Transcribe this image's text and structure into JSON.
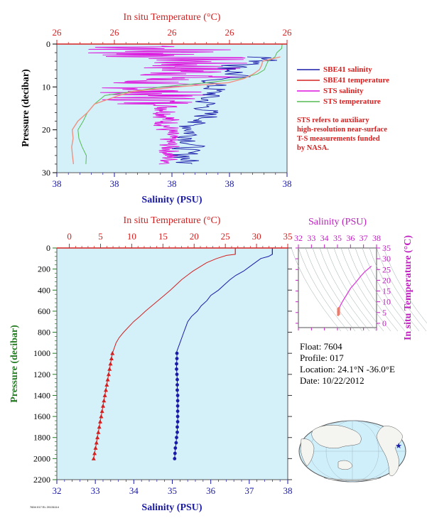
{
  "info": {
    "float_label": "Float:",
    "float": "7604",
    "profile_label": "Profile:",
    "profile": "017",
    "location_label": "Location:",
    "location": "24.1°N  -36.0°E",
    "date_label": "Date:",
    "date": "10/22/2012"
  },
  "note_lines": [
    "STS refers to auxiliary",
    "high-resolution near-surface",
    "T-S measurements funded",
    "by NASA."
  ],
  "footer": "7604 017 EL 20131114",
  "colors": {
    "salinity": "#1a1aa8",
    "temperature": "#d42020",
    "sts_salinity": "#dd11dd",
    "sts_temperature": "#55bb55",
    "background": "#d4f1f9",
    "ts_curve": "#dd33dd"
  },
  "chart_data": [
    {
      "type": "line",
      "name": "near-surface",
      "title": "",
      "top_axis_label": "In situ Temperature (°C)",
      "top_ticks": [
        "26",
        "26",
        "26",
        "26",
        "26"
      ],
      "xlabel": "Salinity (PSU)",
      "x_ticks": [
        "38",
        "38",
        "38",
        "38",
        "38"
      ],
      "ylabel": "Pressure (decibar)",
      "y_ticks": [
        0,
        10,
        20,
        30
      ],
      "ylim": [
        0,
        30
      ],
      "legend_placement": "right",
      "series": [
        {
          "name": "SBE41 salinity",
          "pressure": [
            3,
            4,
            5,
            6,
            7,
            8,
            9,
            10,
            11,
            12,
            13,
            14,
            15,
            16,
            17,
            18,
            19,
            20,
            21,
            22,
            23,
            24,
            25,
            26,
            27,
            28
          ]
        },
        {
          "name": "SBE41 temperature",
          "pressure": [
            3,
            4,
            5,
            6,
            7,
            8,
            9,
            10,
            11,
            12,
            14,
            16,
            18,
            20,
            22,
            24,
            26,
            28
          ]
        },
        {
          "name": "STS salinity",
          "pressure": [
            1,
            2,
            3,
            5,
            6,
            8,
            10,
            11,
            12,
            13,
            14,
            15,
            19,
            22,
            24,
            25,
            27,
            28
          ]
        },
        {
          "name": "STS temperature",
          "pressure": [
            0,
            1,
            2,
            3,
            5,
            7,
            8,
            10,
            12,
            14,
            16,
            18,
            20,
            22,
            24,
            26,
            28
          ]
        }
      ]
    },
    {
      "type": "line",
      "name": "full-profile",
      "title": "",
      "top_axis_label": "In situ Temperature (°C)",
      "top_ticks": [
        0,
        5,
        10,
        15,
        20,
        25,
        30,
        35
      ],
      "temperature_range": [
        -2,
        35
      ],
      "xlabel": "Salinity (PSU)",
      "x_ticks": [
        32,
        33,
        34,
        35,
        36,
        37,
        38
      ],
      "salinity_range": [
        32,
        38
      ],
      "ylabel": "Pressure (decibar)",
      "y_ticks": [
        0,
        200,
        400,
        600,
        800,
        1000,
        1200,
        1400,
        1600,
        1800,
        2000,
        2200
      ],
      "ylim": [
        0,
        2200
      ],
      "series": [
        {
          "name": "Salinity",
          "pressure": [
            5,
            60,
            80,
            100,
            140,
            180,
            220,
            260,
            300,
            350,
            400,
            450,
            500,
            550,
            600,
            650,
            700,
            750,
            800,
            850,
            900,
            950,
            1000
          ],
          "values": [
            37.6,
            37.6,
            37.5,
            37.3,
            37.15,
            37.0,
            36.85,
            36.65,
            36.5,
            36.35,
            36.2,
            36.0,
            35.9,
            35.75,
            35.65,
            35.5,
            35.4,
            35.35,
            35.3,
            35.25,
            35.2,
            35.15,
            35.1
          ],
          "samples": {
            "pressure": [
              1000,
              1050,
              1100,
              1150,
              1200,
              1250,
              1300,
              1350,
              1400,
              1450,
              1500,
              1550,
              1600,
              1650,
              1700,
              1750,
              1800,
              1850,
              1900,
              1950,
              2000
            ],
            "values": [
              35.12,
              35.12,
              35.11,
              35.11,
              35.12,
              35.13,
              35.13,
              35.13,
              35.14,
              35.14,
              35.14,
              35.14,
              35.14,
              35.14,
              35.13,
              35.13,
              35.11,
              35.1,
              35.08,
              35.07,
              35.06
            ]
          }
        },
        {
          "name": "In situ Temperature",
          "pressure": [
            5,
            60,
            70,
            100,
            140,
            180,
            220,
            260,
            300,
            350,
            400,
            450,
            500,
            550,
            600,
            650,
            700,
            750,
            800,
            850,
            900,
            950,
            1000
          ],
          "values": [
            26.6,
            26.6,
            25.2,
            23.6,
            22.0,
            20.9,
            19.8,
            18.9,
            18.0,
            17.1,
            16.2,
            15.2,
            14.2,
            13.2,
            12.2,
            11.3,
            10.3,
            9.5,
            8.7,
            8.0,
            7.5,
            7.2,
            6.9
          ],
          "samples": {
            "pressure": [
              1000,
              1050,
              1100,
              1150,
              1200,
              1250,
              1300,
              1350,
              1400,
              1450,
              1500,
              1550,
              1600,
              1650,
              1700,
              1750,
              1800,
              1850,
              1900,
              1950,
              2000
            ],
            "values": [
              6.9,
              6.75,
              6.6,
              6.45,
              6.3,
              6.15,
              6.0,
              5.85,
              5.7,
              5.55,
              5.4,
              5.25,
              5.1,
              4.95,
              4.8,
              4.65,
              4.5,
              4.35,
              4.2,
              4.05,
              3.9
            ]
          }
        }
      ]
    },
    {
      "type": "line",
      "name": "ts-diagram",
      "title": "",
      "top_axis_label": "Salinity (PSU)",
      "x_ticks": [
        32,
        33,
        34,
        35,
        36,
        37,
        38
      ],
      "xlim": [
        32,
        38
      ],
      "right_axis_label": "In situ Temperature (°C)",
      "y_ticks": [
        0,
        5,
        10,
        15,
        20,
        25,
        30,
        35
      ],
      "ylim": [
        -2,
        35
      ],
      "series": [
        {
          "name": "T-S",
          "x": [
            35.05,
            35.1,
            35.2,
            35.4,
            35.7,
            36.0,
            36.4,
            36.8,
            37.1,
            37.4,
            37.6
          ],
          "y": [
            3.9,
            6.9,
            8.0,
            10.3,
            13.2,
            16.2,
            19.0,
            22.0,
            24.0,
            25.5,
            26.6
          ]
        }
      ]
    }
  ]
}
